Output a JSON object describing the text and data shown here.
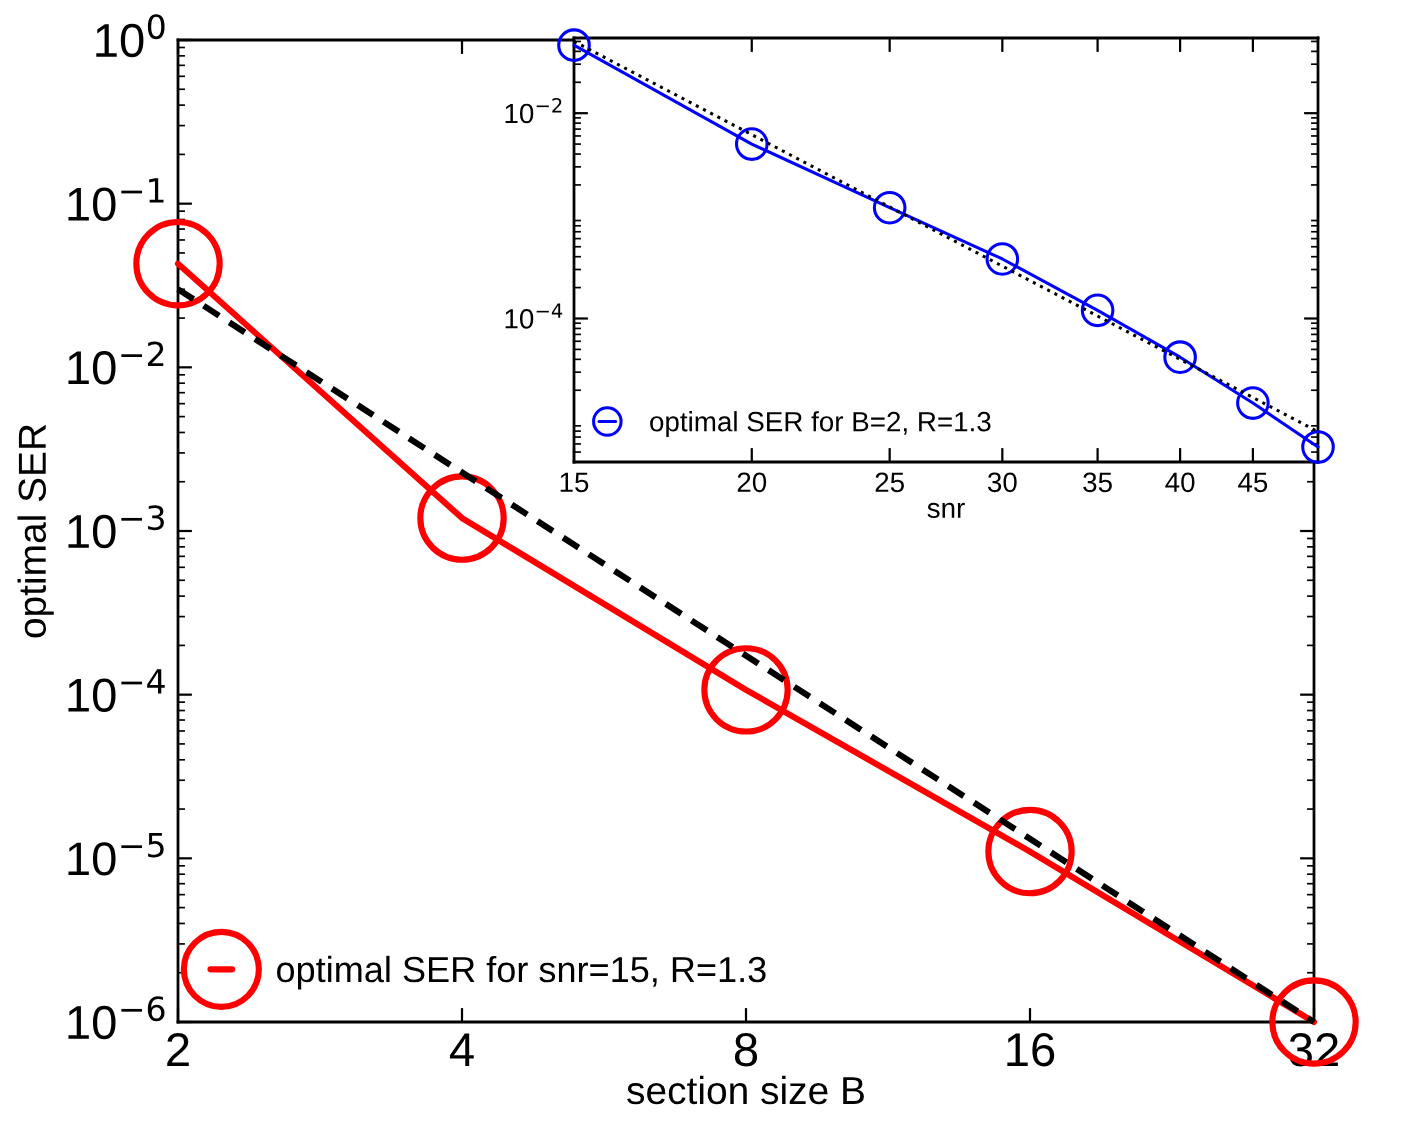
{
  "chart_data": [
    {
      "type": "line",
      "xlabel": "section size B",
      "ylabel": "optimal SER",
      "log": "xy",
      "legend": "bottom left",
      "x": [
        2,
        4,
        8,
        16,
        32
      ],
      "xlim": [
        2,
        32
      ],
      "xticks": [
        2,
        4,
        8,
        16,
        32
      ],
      "ylim": [
        1e-06,
        1
      ],
      "yticks": [
        {
          "value": 1e-06,
          "label": "10$^{−6}$"
        },
        {
          "value": 1e-05,
          "label": "10$^{−5}$"
        },
        {
          "value": 0.0001,
          "label": "10$^{−4}$"
        },
        {
          "value": 0.001,
          "label": "10$^{−3}$"
        },
        {
          "value": 0.01,
          "label": "10$^{−2}$"
        },
        {
          "value": 0.1,
          "label": "10$^{−1}$"
        },
        {
          "value": 1,
          "label": "10$^{0}$"
        }
      ],
      "series": [
        {
          "name": "optimal SER for snr=15, R=1.3",
          "color": "#ff0000",
          "marker": "circle",
          "line_style": "solid",
          "values": [
            0.043,
            0.0012,
            0.000107,
            1.1e-05,
            1e-06
          ]
        },
        {
          "x": [
            2,
            32
          ],
          "color": "#000000",
          "marker": "none",
          "line_style": "dashed",
          "values": [
            0.03,
            1e-06
          ]
        }
      ]
    },
    {
      "type": "line",
      "xlabel": "snr",
      "log": "xy",
      "legend": "bottom left",
      "x": [
        15,
        20,
        25,
        30,
        35,
        40,
        45,
        50
      ],
      "xlim": [
        15,
        50
      ],
      "xticks": [
        15,
        20,
        25,
        30,
        35,
        40,
        45
      ],
      "ylim": [
        4e-06,
        0.054
      ],
      "yticks": [
        {
          "value": 0.0001,
          "label": "10$^{−4}$"
        },
        {
          "value": 0.01,
          "label": "10$^{−2}$"
        }
      ],
      "series": [
        {
          "name": "optimal SER for B=2, R=1.3",
          "color": "#0000ff",
          "marker": "circle",
          "line_style": "solid",
          "values": [
            0.046,
            0.005,
            0.0012,
            0.00038,
            0.00012,
            4.2e-05,
            1.5e-05,
            5.6e-06
          ]
        },
        {
          "x": [
            15,
            50
          ],
          "color": "#000000",
          "marker": "none",
          "line_style": "dotted",
          "values": [
            0.05,
            7.9e-06
          ]
        }
      ]
    }
  ]
}
